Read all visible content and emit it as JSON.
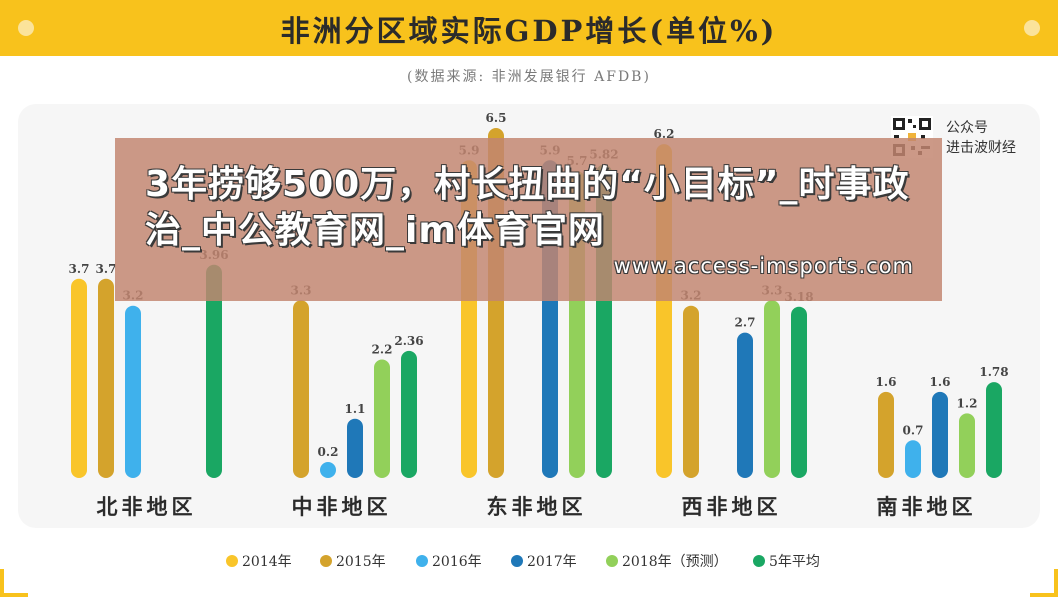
{
  "header": {
    "title": "非洲分区域实际GDP增长(单位%)",
    "source": "(数据来源: 非洲发展银行 AFDB)"
  },
  "watermark": {
    "account_line1": "公众号",
    "account_line2": "进击波财经"
  },
  "overlay": {
    "title": "3年捞够500万，村长扭曲的“小目标”_时事政治_中公教育网_im体育官网",
    "url": "www.access-imsports.com"
  },
  "colors": {
    "banner": "#f8c21c",
    "series": [
      "#f9c52a",
      "#d4a32c",
      "#3fb1ec",
      "#1f78b8",
      "#92d05a",
      "#1aa763"
    ]
  },
  "chart_data": {
    "type": "bar",
    "title": "非洲分区域实际GDP增长(单位%)",
    "xlabel": "",
    "ylabel": "",
    "ylim": [
      0,
      6.5
    ],
    "grid": false,
    "legend_position": "bottom",
    "categories": [
      "北非地区",
      "中非地区",
      "东非地区",
      "西非地区",
      "南非地区"
    ],
    "series": [
      {
        "name": "2014年",
        "values": [
          3.7,
          null,
          5.9,
          6.2,
          null
        ]
      },
      {
        "name": "2015年",
        "values": [
          3.7,
          3.3,
          6.5,
          3.2,
          1.6
        ]
      },
      {
        "name": "2016年",
        "values": [
          3.2,
          0.2,
          null,
          null,
          0.7
        ]
      },
      {
        "name": "2017年",
        "values": [
          null,
          1.1,
          5.9,
          2.7,
          1.6
        ]
      },
      {
        "name": "2018年（预测）",
        "values": [
          null,
          2.2,
          5.7,
          3.3,
          1.2
        ]
      },
      {
        "name": "5年平均",
        "values": [
          3.96,
          2.36,
          5.82,
          3.18,
          1.78
        ]
      }
    ]
  }
}
